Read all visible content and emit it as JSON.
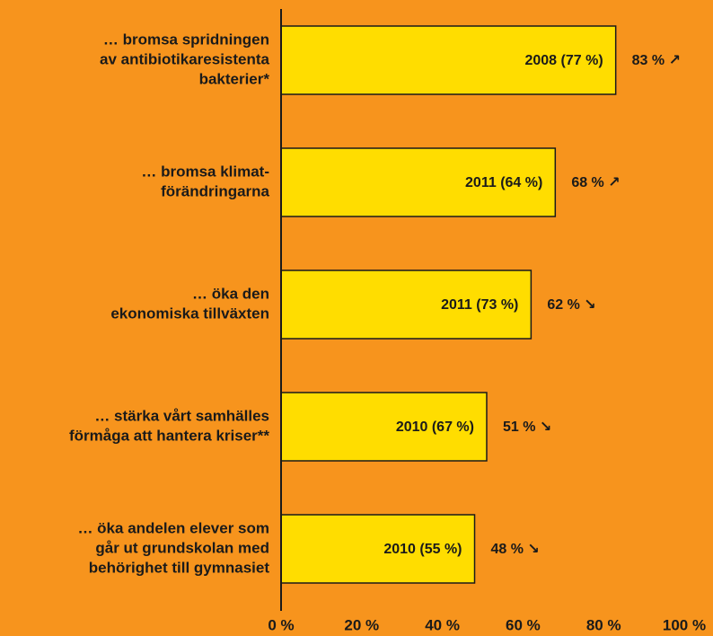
{
  "chart_data": {
    "type": "barh",
    "categories": [
      [
        "… bromsa spridningen",
        "av antibiotikaresistenta",
        "bakterier*"
      ],
      [
        "… bromsa klimat-",
        "förändringarna"
      ],
      [
        "… öka den",
        "ekonomiska tillväxten"
      ],
      [
        "… stärka vårt samhälles",
        "förmåga att hantera kriser**"
      ],
      [
        "… öka andelen elever som",
        "går ut grundskolan med",
        "behörighet till gymnasiet"
      ]
    ],
    "values": [
      83,
      68,
      62,
      51,
      48
    ],
    "value_labels": [
      "83 % ↗",
      "68 % ↗",
      "62 % ↘",
      "51 % ↘",
      "48 % ↘"
    ],
    "bar_labels": [
      "2008 (77 %)",
      "2011 (64 %)",
      "2011 (73 %)",
      "2010 (67 %)",
      "2010 (55 %)"
    ],
    "color": "#ffdd00",
    "xlim": [
      0,
      100
    ],
    "xticks": [
      {
        "value": 0,
        "label": "0 %"
      },
      {
        "value": 20,
        "label": "20 %"
      },
      {
        "value": 40,
        "label": "40 %"
      },
      {
        "value": 60,
        "label": "60 %"
      },
      {
        "value": 80,
        "label": "80 %"
      },
      {
        "value": 100,
        "label": "100 %"
      }
    ]
  }
}
